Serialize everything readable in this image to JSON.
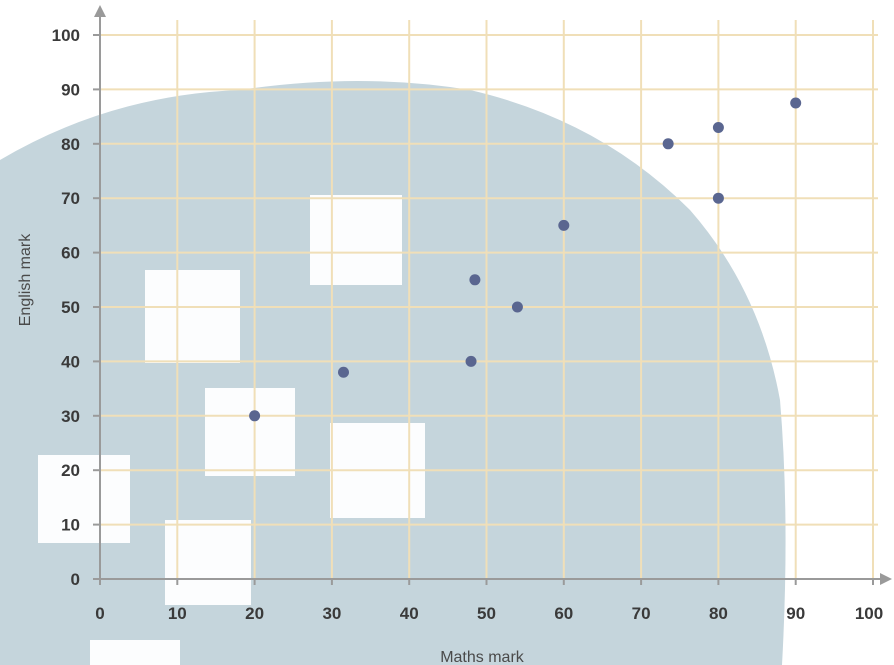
{
  "chart_data": {
    "type": "scatter",
    "xlabel": "Maths mark",
    "ylabel": "English mark",
    "xlim": [
      0,
      100
    ],
    "ylim": [
      0,
      100
    ],
    "x_ticks": [
      "0",
      "10",
      "20",
      "30",
      "40",
      "50",
      "60",
      "70",
      "80",
      "90",
      "100"
    ],
    "y_ticks": [
      "0",
      "10",
      "20",
      "30",
      "40",
      "50",
      "60",
      "70",
      "80",
      "90",
      "100"
    ],
    "grid": true,
    "points": [
      {
        "x": 20,
        "y": 30
      },
      {
        "x": 31.5,
        "y": 38
      },
      {
        "x": 48,
        "y": 40
      },
      {
        "x": 48.5,
        "y": 55
      },
      {
        "x": 54,
        "y": 50
      },
      {
        "x": 60,
        "y": 65
      },
      {
        "x": 73.5,
        "y": 80
      },
      {
        "x": 80,
        "y": 83
      },
      {
        "x": 80,
        "y": 70
      },
      {
        "x": 90,
        "y": 87.5
      }
    ],
    "colors": {
      "grid": "#f0dfb8",
      "axis": "#9a9a9a",
      "point": "#5a6690",
      "background_shape": "#c5d5dc"
    }
  }
}
